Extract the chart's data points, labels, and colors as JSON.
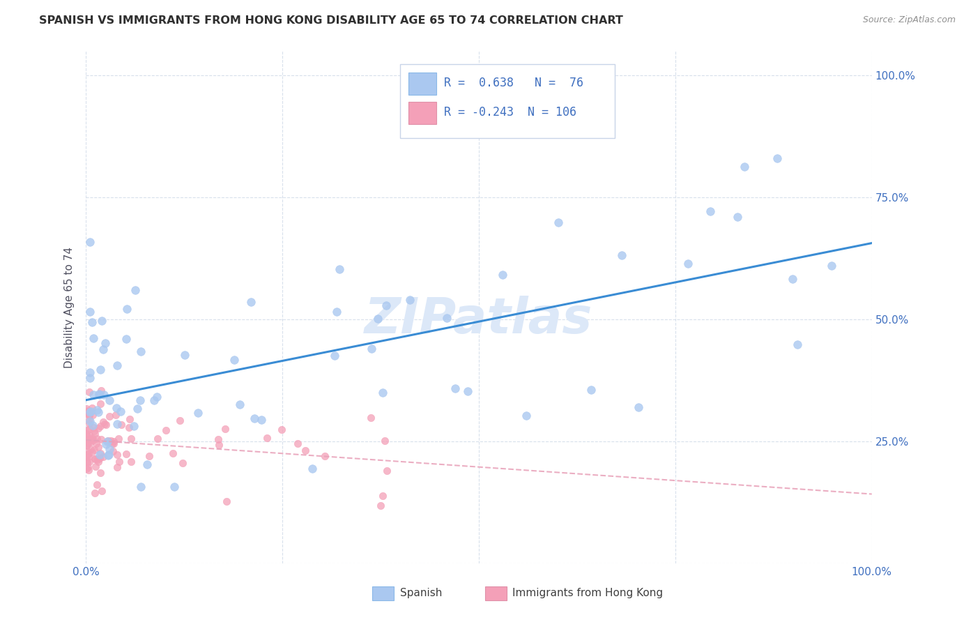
{
  "title": "SPANISH VS IMMIGRANTS FROM HONG KONG DISABILITY AGE 65 TO 74 CORRELATION CHART",
  "source": "Source: ZipAtlas.com",
  "ylabel": "Disability Age 65 to 74",
  "legend_label1": "Spanish",
  "legend_label2": "Immigrants from Hong Kong",
  "r1": 0.638,
  "n1": 76,
  "r2": -0.243,
  "n2": 106,
  "color_spanish": "#aac8f0",
  "color_hk": "#f4a0b8",
  "color_trend1": "#3a8cd4",
  "color_trend2": "#e8a0b8",
  "watermark": "ZIPatlas",
  "watermark_color": "#dce8f8",
  "grid_color": "#d8e0ec",
  "tick_color": "#4070c0",
  "ylabel_color": "#505060",
  "title_color": "#303030",
  "source_color": "#909090",
  "xlim": [
    0,
    100
  ],
  "ylim": [
    0,
    105
  ],
  "yticks": [
    0,
    25,
    50,
    75,
    100
  ],
  "ytick_labels": [
    "",
    "25.0%",
    "50.0%",
    "75.0%",
    "100.0%"
  ],
  "xtick_labels_show": [
    "0.0%",
    "100.0%"
  ],
  "sp_seed": 77,
  "hk_seed": 88
}
